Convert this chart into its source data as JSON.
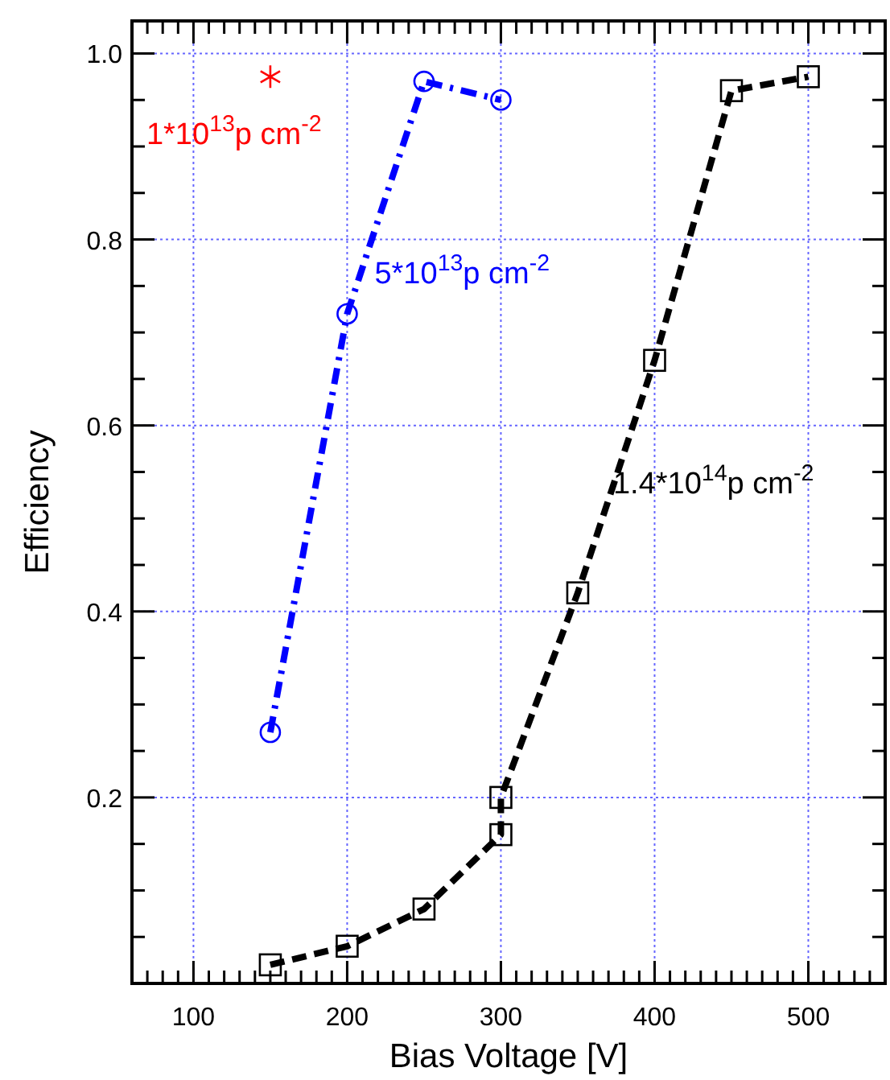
{
  "chart_data": {
    "type": "line",
    "xlabel": "Bias Voltage [V]",
    "ylabel": "Efficiency",
    "xlim": [
      60,
      550
    ],
    "ylim": [
      0,
      1.035
    ],
    "xticks": [
      {
        "value": 60,
        "label": null
      },
      {
        "value": 70,
        "label": null
      },
      {
        "value": 80,
        "label": null
      },
      {
        "value": 90,
        "label": null
      },
      100,
      {
        "value": 110,
        "label": null
      },
      {
        "value": 120,
        "label": null
      },
      {
        "value": 130,
        "label": null
      },
      {
        "value": 140,
        "label": null
      },
      {
        "value": 150,
        "label": null
      },
      {
        "value": 160,
        "label": null
      },
      {
        "value": 170,
        "label": null
      },
      {
        "value": 180,
        "label": null
      },
      {
        "value": 190,
        "label": null
      },
      200,
      {
        "value": 210,
        "label": null
      },
      {
        "value": 220,
        "label": null
      },
      {
        "value": 230,
        "label": null
      },
      {
        "value": 240,
        "label": null
      },
      {
        "value": 250,
        "label": null
      },
      {
        "value": 260,
        "label": null
      },
      {
        "value": 270,
        "label": null
      },
      {
        "value": 280,
        "label": null
      },
      {
        "value": 290,
        "label": null
      },
      300,
      {
        "value": 310,
        "label": null
      },
      {
        "value": 320,
        "label": null
      },
      {
        "value": 330,
        "label": null
      },
      {
        "value": 340,
        "label": null
      },
      {
        "value": 350,
        "label": null
      },
      {
        "value": 360,
        "label": null
      },
      {
        "value": 370,
        "label": null
      },
      {
        "value": 380,
        "label": null
      },
      {
        "value": 390,
        "label": null
      },
      400,
      {
        "value": 410,
        "label": null
      },
      {
        "value": 420,
        "label": null
      },
      {
        "value": 430,
        "label": null
      },
      {
        "value": 440,
        "label": null
      },
      {
        "value": 450,
        "label": null
      },
      {
        "value": 460,
        "label": null
      },
      {
        "value": 470,
        "label": null
      },
      {
        "value": 480,
        "label": null
      },
      {
        "value": 490,
        "label": null
      },
      500,
      {
        "value": 510,
        "label": null
      },
      {
        "value": 520,
        "label": null
      },
      {
        "value": 530,
        "label": null
      },
      {
        "value": 540,
        "label": null
      },
      {
        "value": 550,
        "label": null
      }
    ],
    "yticks": [
      {
        "value": 0.05,
        "label": null
      },
      {
        "value": 0.1,
        "label": null
      },
      {
        "value": 0.15,
        "label": null
      },
      0.2,
      {
        "value": 0.25,
        "label": null
      },
      {
        "value": 0.3,
        "label": null
      },
      {
        "value": 0.35,
        "label": null
      },
      0.4,
      {
        "value": 0.45,
        "label": null
      },
      {
        "value": 0.5,
        "label": null
      },
      {
        "value": 0.55,
        "label": null
      },
      0.6,
      {
        "value": 0.65,
        "label": null
      },
      {
        "value": 0.7,
        "label": null
      },
      {
        "value": 0.75,
        "label": null
      },
      0.8,
      {
        "value": 0.85,
        "label": null
      },
      {
        "value": 0.9,
        "label": null
      },
      {
        "value": 0.95,
        "label": null
      },
      {
        "value": 1,
        "label": "1.0"
      }
    ],
    "grid": true,
    "series": [
      {
        "name": "1*10$^{13}$p cm$^{-2}$",
        "type": "scatter",
        "color": "#ff0000",
        "marker": "cross",
        "x": [
          150
        ],
        "values": [
          0.975
        ]
      },
      {
        "name": "5*10$^{13}$p cm$^{-2}$",
        "color": "#0000ff",
        "marker": "circle",
        "line_style": "dashdot",
        "x": [
          150,
          200,
          250,
          300
        ],
        "values": [
          0.27,
          0.72,
          0.97,
          0.95
        ]
      },
      {
        "name": "1.4*10$^{14}$p cm$^{-2}$",
        "color": "#000000",
        "marker": "square",
        "line_style": "dashed",
        "x": [
          150,
          200,
          250,
          300,
          300,
          350,
          400,
          450,
          500
        ],
        "values": [
          0.02,
          0.04,
          0.08,
          0.16,
          0.2,
          0.42,
          0.67,
          0.96,
          0.975
        ]
      }
    ]
  }
}
